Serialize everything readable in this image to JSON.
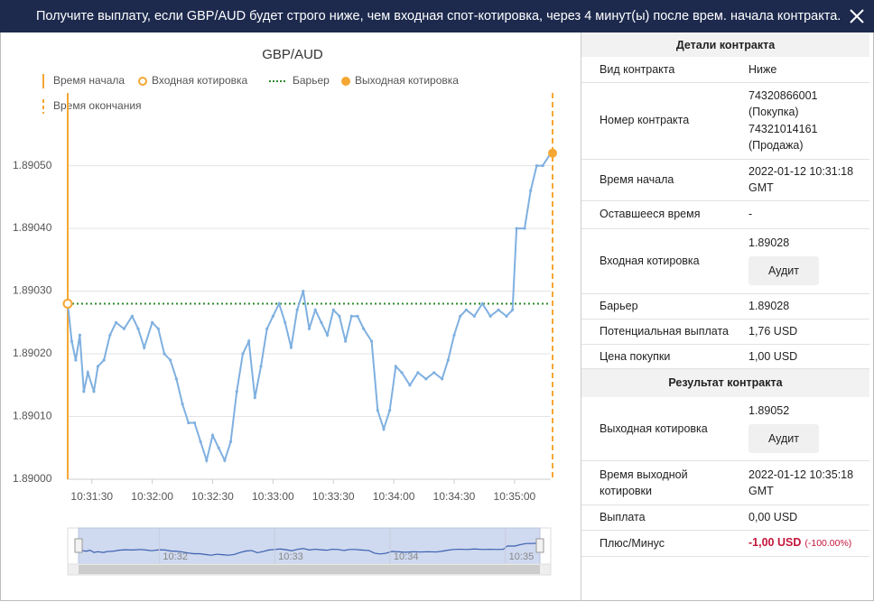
{
  "header": {
    "title": "Получите выплату, если GBP/AUD будет строго ниже, чем входная спот-котировка, через 4 минут(ы) после врем. начала контракта."
  },
  "chart_data": {
    "type": "line",
    "title": "GBP/AUD",
    "color": "#7fb0e0",
    "x": [
      "10:31:18",
      "10:31:20",
      "10:31:22",
      "10:31:24",
      "10:31:26",
      "10:31:28",
      "10:31:31",
      "10:31:33",
      "10:31:36",
      "10:31:39",
      "10:31:42",
      "10:31:46",
      "10:31:50",
      "10:31:53",
      "10:31:56",
      "10:32:00",
      "10:32:03",
      "10:32:06",
      "10:32:09",
      "10:32:12",
      "10:32:15",
      "10:32:18",
      "10:32:21",
      "10:32:24",
      "10:32:27",
      "10:32:30",
      "10:32:33",
      "10:32:36",
      "10:32:39",
      "10:32:42",
      "10:32:45",
      "10:32:48",
      "10:32:51",
      "10:32:54",
      "10:32:57",
      "10:33:00",
      "10:33:03",
      "10:33:06",
      "10:33:09",
      "10:33:12",
      "10:33:15",
      "10:33:18",
      "10:33:21",
      "10:33:24",
      "10:33:27",
      "10:33:30",
      "10:33:33",
      "10:33:36",
      "10:33:39",
      "10:33:42",
      "10:33:45",
      "10:33:49",
      "10:33:52",
      "10:33:55",
      "10:33:58",
      "10:34:01",
      "10:34:04",
      "10:34:08",
      "10:34:12",
      "10:34:16",
      "10:34:20",
      "10:34:24",
      "10:34:27",
      "10:34:30",
      "10:34:33",
      "10:34:36",
      "10:34:40",
      "10:34:44",
      "10:34:48",
      "10:34:52",
      "10:34:56",
      "10:34:59",
      "10:35:01",
      "10:35:05",
      "10:35:08",
      "10:35:11",
      "10:35:14",
      "10:35:18"
    ],
    "values": [
      1.89028,
      1.89022,
      1.89019,
      1.89023,
      1.89014,
      1.89017,
      1.89014,
      1.89018,
      1.89019,
      1.89023,
      1.89025,
      1.89024,
      1.89026,
      1.89024,
      1.89021,
      1.89025,
      1.89024,
      1.8902,
      1.89019,
      1.89016,
      1.89012,
      1.89009,
      1.89009,
      1.89006,
      1.89003,
      1.89007,
      1.89005,
      1.89003,
      1.89006,
      1.89014,
      1.8902,
      1.89022,
      1.89013,
      1.89018,
      1.89024,
      1.89026,
      1.89028,
      1.89025,
      1.89021,
      1.89027,
      1.8903,
      1.89024,
      1.89027,
      1.89025,
      1.89023,
      1.89027,
      1.89026,
      1.89022,
      1.89026,
      1.89026,
      1.89024,
      1.89022,
      1.89011,
      1.89008,
      1.89011,
      1.89018,
      1.89017,
      1.89015,
      1.89017,
      1.89016,
      1.89017,
      1.89016,
      1.89019,
      1.89023,
      1.89026,
      1.89027,
      1.89026,
      1.89028,
      1.89026,
      1.89027,
      1.89026,
      1.89027,
      1.8904,
      1.8904,
      1.89046,
      1.8905,
      1.8905,
      1.89052
    ],
    "xlim": [
      "10:31:18",
      "10:35:18"
    ],
    "xticks": [
      "10:31:30",
      "10:32:00",
      "10:32:30",
      "10:33:00",
      "10:33:30",
      "10:34:00",
      "10:34:30",
      "10:35:00"
    ],
    "ylim": [
      1.89,
      1.89058
    ],
    "yticks": [
      {
        "value": 1.89,
        "label": "1.89000"
      },
      {
        "value": 1.8901,
        "label": "1.89010"
      },
      {
        "value": 1.8902,
        "label": "1.89020"
      },
      {
        "value": 1.8903,
        "label": "1.89030"
      },
      {
        "value": 1.8904,
        "label": "1.89040"
      },
      {
        "value": 1.8905,
        "label": "1.89050"
      }
    ],
    "grid": true,
    "barrier": 1.89028,
    "barrier_color": "#2e8b2e",
    "entry": {
      "x": "10:31:18",
      "value": 1.89028
    },
    "exit": {
      "x": "10:35:18",
      "value": 1.89052
    },
    "marker_color": "#f5a733",
    "legend": [
      {
        "label": "Время начала",
        "symbol": "line"
      },
      {
        "label": "Входная котировка",
        "symbol": "ring"
      },
      {
        "label": "Барьер",
        "symbol": "dots"
      },
      {
        "label": "Выходная котировка",
        "symbol": "dot"
      },
      {
        "label": "Время окончания",
        "symbol": "dash"
      }
    ],
    "navigator": {
      "xticks": [
        "10:32",
        "10:33",
        "10:34",
        "10:35"
      ]
    }
  },
  "details": {
    "title": "Детали контракта",
    "rows": [
      {
        "label": "Вид контракта",
        "value": "Ниже"
      },
      {
        "label": "Номер контракта",
        "lines": [
          "74320866001 (Покупка)",
          "74321014161 (Продажа)"
        ]
      },
      {
        "label": "Время начала",
        "value": "2022-01-12 10:31:18 GMT"
      },
      {
        "label": "Оставшееся время",
        "value": "-"
      },
      {
        "label": "Входная котировка",
        "value": "1.89028",
        "button": "Аудит"
      },
      {
        "label": "Барьер",
        "value": "1.89028"
      },
      {
        "label": "Потенциальная выплата",
        "value": "1,76 USD"
      },
      {
        "label": "Цена покупки",
        "value": "1,00 USD"
      }
    ]
  },
  "result": {
    "title": "Результат контракта",
    "rows": [
      {
        "label": "Выходная котировка",
        "value": "1.89052",
        "button": "Аудит"
      },
      {
        "label": "Время выходной котировки",
        "value": "2022-01-12 10:35:18 GMT"
      },
      {
        "label": "Выплата",
        "value": "0,00 USD"
      },
      {
        "label": "Плюс/Минус",
        "value": "-1,00 USD",
        "percent": "(-100.00%)"
      }
    ]
  }
}
